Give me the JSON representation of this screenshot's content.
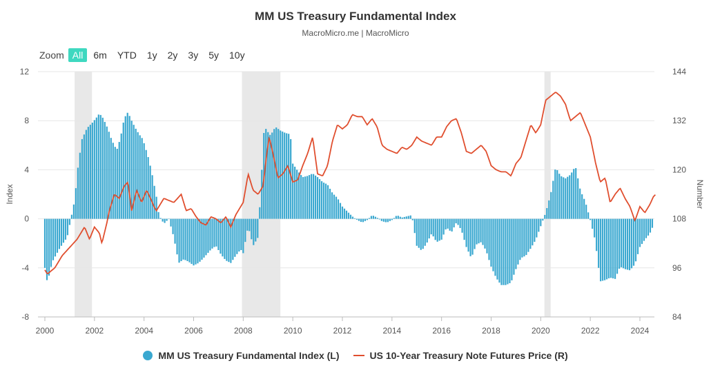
{
  "chart_data": {
    "type": "bar+line",
    "title": "MM US Treasury Fundamental Index",
    "subtitle": "MacroMicro.me | MacroMicro",
    "range_selector": {
      "zoom_label": "Zoom",
      "buttons": [
        "All",
        "6m",
        "YTD",
        "1y",
        "2y",
        "3y",
        "5y",
        "10y"
      ],
      "active": "All"
    },
    "x_ticks": [
      "2000",
      "2002",
      "2004",
      "2006",
      "2008",
      "2010",
      "2012",
      "2014",
      "2016",
      "2018",
      "2020",
      "2022",
      "2024"
    ],
    "xlim": [
      2000,
      2024.8
    ],
    "left_axis": {
      "label": "Index",
      "ylim": [
        -8,
        12
      ],
      "ticks": [
        "-8",
        "-4",
        "0",
        "4",
        "8",
        "12"
      ]
    },
    "right_axis": {
      "label": "Number",
      "ylim": [
        84,
        144
      ],
      "ticks": [
        "84",
        "96",
        "108",
        "120",
        "132",
        "144"
      ]
    },
    "recessions": [
      [
        2001.2,
        2001.9
      ],
      [
        2007.95,
        2009.5
      ],
      [
        2020.15,
        2020.4
      ]
    ],
    "series": [
      {
        "name": "MM US Treasury Fundamental Index (L)",
        "type": "bar",
        "color": "#3aa8d0",
        "points": [
          [
            2000.0,
            -4.0
          ],
          [
            2000.1,
            -5.2
          ],
          [
            2000.3,
            -3.5
          ],
          [
            2000.6,
            -2.4
          ],
          [
            2000.9,
            -1.5
          ],
          [
            2001.0,
            -0.5
          ],
          [
            2001.2,
            1.5
          ],
          [
            2001.35,
            4.5
          ],
          [
            2001.5,
            6.5
          ],
          [
            2001.7,
            7.4
          ],
          [
            2001.9,
            7.8
          ],
          [
            2002.1,
            8.3
          ],
          [
            2002.2,
            8.6
          ],
          [
            2002.35,
            8.2
          ],
          [
            2002.55,
            7.3
          ],
          [
            2002.7,
            6.4
          ],
          [
            2002.9,
            5.6
          ],
          [
            2003.05,
            6.6
          ],
          [
            2003.2,
            8.2
          ],
          [
            2003.35,
            8.7
          ],
          [
            2003.5,
            8.0
          ],
          [
            2003.65,
            7.4
          ],
          [
            2003.8,
            6.9
          ],
          [
            2003.95,
            6.5
          ],
          [
            2004.1,
            5.5
          ],
          [
            2004.2,
            4.8
          ],
          [
            2004.35,
            3.4
          ],
          [
            2004.5,
            1.8
          ],
          [
            2004.6,
            0.3
          ],
          [
            2004.8,
            -0.4
          ],
          [
            2005.0,
            0.0
          ],
          [
            2005.2,
            -1.5
          ],
          [
            2005.4,
            -3.6
          ],
          [
            2005.6,
            -3.3
          ],
          [
            2005.8,
            -3.5
          ],
          [
            2006.0,
            -3.8
          ],
          [
            2006.2,
            -3.6
          ],
          [
            2006.4,
            -3.2
          ],
          [
            2006.7,
            -2.5
          ],
          [
            2006.9,
            -2.2
          ],
          [
            2007.1,
            -2.9
          ],
          [
            2007.3,
            -3.4
          ],
          [
            2007.5,
            -3.6
          ],
          [
            2007.7,
            -3.0
          ],
          [
            2007.9,
            -2.5
          ],
          [
            2008.0,
            -2.8
          ],
          [
            2008.2,
            -0.6
          ],
          [
            2008.4,
            -2.2
          ],
          [
            2008.6,
            -1.5
          ],
          [
            2008.75,
            4.0
          ],
          [
            2008.85,
            7.6
          ],
          [
            2008.95,
            7.2
          ],
          [
            2009.1,
            6.8
          ],
          [
            2009.3,
            7.5
          ],
          [
            2009.5,
            7.2
          ],
          [
            2009.7,
            7.0
          ],
          [
            2009.9,
            6.9
          ],
          [
            2010.0,
            4.5
          ],
          [
            2010.2,
            3.9
          ],
          [
            2010.4,
            3.4
          ],
          [
            2010.6,
            3.5
          ],
          [
            2010.8,
            3.7
          ],
          [
            2011.0,
            3.4
          ],
          [
            2011.2,
            3.0
          ],
          [
            2011.4,
            2.8
          ],
          [
            2011.6,
            2.1
          ],
          [
            2011.8,
            1.7
          ],
          [
            2012.0,
            1.0
          ],
          [
            2012.2,
            0.6
          ],
          [
            2012.4,
            0.2
          ],
          [
            2012.6,
            -0.1
          ],
          [
            2012.8,
            -0.3
          ],
          [
            2013.0,
            -0.1
          ],
          [
            2013.2,
            0.3
          ],
          [
            2013.4,
            0.1
          ],
          [
            2013.6,
            -0.2
          ],
          [
            2013.8,
            -0.3
          ],
          [
            2014.0,
            -0.1
          ],
          [
            2014.2,
            0.3
          ],
          [
            2014.4,
            0.1
          ],
          [
            2014.6,
            0.2
          ],
          [
            2014.8,
            0.3
          ],
          [
            2015.0,
            -2.2
          ],
          [
            2015.2,
            -2.6
          ],
          [
            2015.4,
            -2.0
          ],
          [
            2015.6,
            -1.2
          ],
          [
            2015.8,
            -1.9
          ],
          [
            2016.0,
            -1.7
          ],
          [
            2016.2,
            -0.7
          ],
          [
            2016.4,
            -1.1
          ],
          [
            2016.6,
            -0.3
          ],
          [
            2016.8,
            -0.9
          ],
          [
            2017.0,
            -2.3
          ],
          [
            2017.2,
            -3.2
          ],
          [
            2017.4,
            -2.1
          ],
          [
            2017.6,
            -1.9
          ],
          [
            2017.8,
            -2.6
          ],
          [
            2018.0,
            -3.9
          ],
          [
            2018.2,
            -4.8
          ],
          [
            2018.4,
            -5.4
          ],
          [
            2018.6,
            -5.4
          ],
          [
            2018.8,
            -5.2
          ],
          [
            2019.0,
            -4.1
          ],
          [
            2019.2,
            -3.2
          ],
          [
            2019.4,
            -3.0
          ],
          [
            2019.6,
            -2.4
          ],
          [
            2019.8,
            -1.7
          ],
          [
            2020.0,
            -0.6
          ],
          [
            2020.2,
            0.5
          ],
          [
            2020.4,
            2.0
          ],
          [
            2020.6,
            4.2
          ],
          [
            2020.8,
            3.5
          ],
          [
            2021.0,
            3.3
          ],
          [
            2021.2,
            3.6
          ],
          [
            2021.4,
            4.3
          ],
          [
            2021.6,
            2.3
          ],
          [
            2021.8,
            1.4
          ],
          [
            2022.0,
            -0.1
          ],
          [
            2022.2,
            -1.8
          ],
          [
            2022.4,
            -5.1
          ],
          [
            2022.6,
            -5.0
          ],
          [
            2022.8,
            -4.8
          ],
          [
            2023.0,
            -4.9
          ],
          [
            2023.2,
            -3.9
          ],
          [
            2023.4,
            -4.1
          ],
          [
            2023.6,
            -4.2
          ],
          [
            2023.8,
            -3.7
          ],
          [
            2024.0,
            -2.3
          ],
          [
            2024.2,
            -1.7
          ],
          [
            2024.4,
            -1.2
          ],
          [
            2024.55,
            -0.5
          ]
        ]
      },
      {
        "name": "US 10-Year Treasury Note Futures Price (R)",
        "type": "line",
        "color": "#e04e2e",
        "points": [
          [
            2000.0,
            95.5
          ],
          [
            2000.1,
            94.5
          ],
          [
            2000.4,
            96.0
          ],
          [
            2000.7,
            99.0
          ],
          [
            2001.0,
            101.0
          ],
          [
            2001.3,
            103.0
          ],
          [
            2001.6,
            106.0
          ],
          [
            2001.8,
            103.0
          ],
          [
            2002.0,
            106.0
          ],
          [
            2002.2,
            104.5
          ],
          [
            2002.3,
            102.0
          ],
          [
            2002.5,
            107.0
          ],
          [
            2002.6,
            110.0
          ],
          [
            2002.8,
            114.0
          ],
          [
            2003.0,
            113.0
          ],
          [
            2003.2,
            116.0
          ],
          [
            2003.35,
            117.0
          ],
          [
            2003.5,
            110.0
          ],
          [
            2003.7,
            115.0
          ],
          [
            2003.9,
            112.0
          ],
          [
            2004.1,
            115.0
          ],
          [
            2004.3,
            112.5
          ],
          [
            2004.4,
            111.0
          ],
          [
            2004.5,
            110.0
          ],
          [
            2004.8,
            113.0
          ],
          [
            2005.0,
            112.5
          ],
          [
            2005.2,
            112.0
          ],
          [
            2005.5,
            114.0
          ],
          [
            2005.7,
            110.0
          ],
          [
            2005.9,
            110.5
          ],
          [
            2006.1,
            108.5
          ],
          [
            2006.3,
            107.0
          ],
          [
            2006.5,
            106.5
          ],
          [
            2006.7,
            108.5
          ],
          [
            2006.9,
            108.0
          ],
          [
            2007.1,
            107.0
          ],
          [
            2007.3,
            108.5
          ],
          [
            2007.5,
            106.0
          ],
          [
            2007.7,
            109.0
          ],
          [
            2008.0,
            112.0
          ],
          [
            2008.2,
            119.0
          ],
          [
            2008.4,
            115.0
          ],
          [
            2008.6,
            114.0
          ],
          [
            2008.8,
            116.0
          ],
          [
            2008.95,
            124.0
          ],
          [
            2009.05,
            128.0
          ],
          [
            2009.2,
            124.0
          ],
          [
            2009.4,
            118.0
          ],
          [
            2009.6,
            119.0
          ],
          [
            2009.8,
            121.0
          ],
          [
            2010.0,
            117.0
          ],
          [
            2010.2,
            117.5
          ],
          [
            2010.4,
            121.0
          ],
          [
            2010.6,
            124.0
          ],
          [
            2010.8,
            128.0
          ],
          [
            2011.0,
            119.0
          ],
          [
            2011.2,
            118.5
          ],
          [
            2011.4,
            121.0
          ],
          [
            2011.6,
            127.0
          ],
          [
            2011.8,
            131.0
          ],
          [
            2012.0,
            130.0
          ],
          [
            2012.2,
            131.0
          ],
          [
            2012.4,
            133.5
          ],
          [
            2012.6,
            133.0
          ],
          [
            2012.8,
            133.0
          ],
          [
            2013.0,
            131.0
          ],
          [
            2013.2,
            132.5
          ],
          [
            2013.4,
            130.5
          ],
          [
            2013.6,
            126.0
          ],
          [
            2013.8,
            125.0
          ],
          [
            2014.0,
            124.5
          ],
          [
            2014.2,
            124.0
          ],
          [
            2014.4,
            125.5
          ],
          [
            2014.6,
            125.0
          ],
          [
            2014.8,
            126.0
          ],
          [
            2015.0,
            128.0
          ],
          [
            2015.2,
            127.0
          ],
          [
            2015.4,
            126.5
          ],
          [
            2015.6,
            126.0
          ],
          [
            2015.8,
            128.0
          ],
          [
            2016.0,
            128.0
          ],
          [
            2016.2,
            130.5
          ],
          [
            2016.4,
            132.0
          ],
          [
            2016.6,
            132.5
          ],
          [
            2016.8,
            129.0
          ],
          [
            2017.0,
            124.5
          ],
          [
            2017.2,
            124.0
          ],
          [
            2017.4,
            125.0
          ],
          [
            2017.6,
            126.0
          ],
          [
            2017.8,
            124.5
          ],
          [
            2018.0,
            121.0
          ],
          [
            2018.2,
            120.0
          ],
          [
            2018.4,
            119.5
          ],
          [
            2018.6,
            119.5
          ],
          [
            2018.8,
            118.5
          ],
          [
            2019.0,
            121.5
          ],
          [
            2019.2,
            123.0
          ],
          [
            2019.4,
            127.0
          ],
          [
            2019.6,
            131.0
          ],
          [
            2019.8,
            129.0
          ],
          [
            2020.0,
            131.0
          ],
          [
            2020.2,
            137.0
          ],
          [
            2020.4,
            138.0
          ],
          [
            2020.6,
            139.0
          ],
          [
            2020.8,
            138.0
          ],
          [
            2021.0,
            136.0
          ],
          [
            2021.2,
            132.0
          ],
          [
            2021.4,
            133.0
          ],
          [
            2021.6,
            134.0
          ],
          [
            2021.8,
            131.0
          ],
          [
            2022.0,
            128.0
          ],
          [
            2022.2,
            122.0
          ],
          [
            2022.4,
            117.0
          ],
          [
            2022.6,
            118.0
          ],
          [
            2022.8,
            112.0
          ],
          [
            2023.0,
            114.0
          ],
          [
            2023.2,
            115.5
          ],
          [
            2023.4,
            113.0
          ],
          [
            2023.6,
            111.0
          ],
          [
            2023.8,
            107.5
          ],
          [
            2024.0,
            111.0
          ],
          [
            2024.2,
            109.5
          ],
          [
            2024.4,
            111.5
          ],
          [
            2024.55,
            113.5
          ],
          [
            2024.65,
            114.0
          ]
        ]
      }
    ]
  }
}
